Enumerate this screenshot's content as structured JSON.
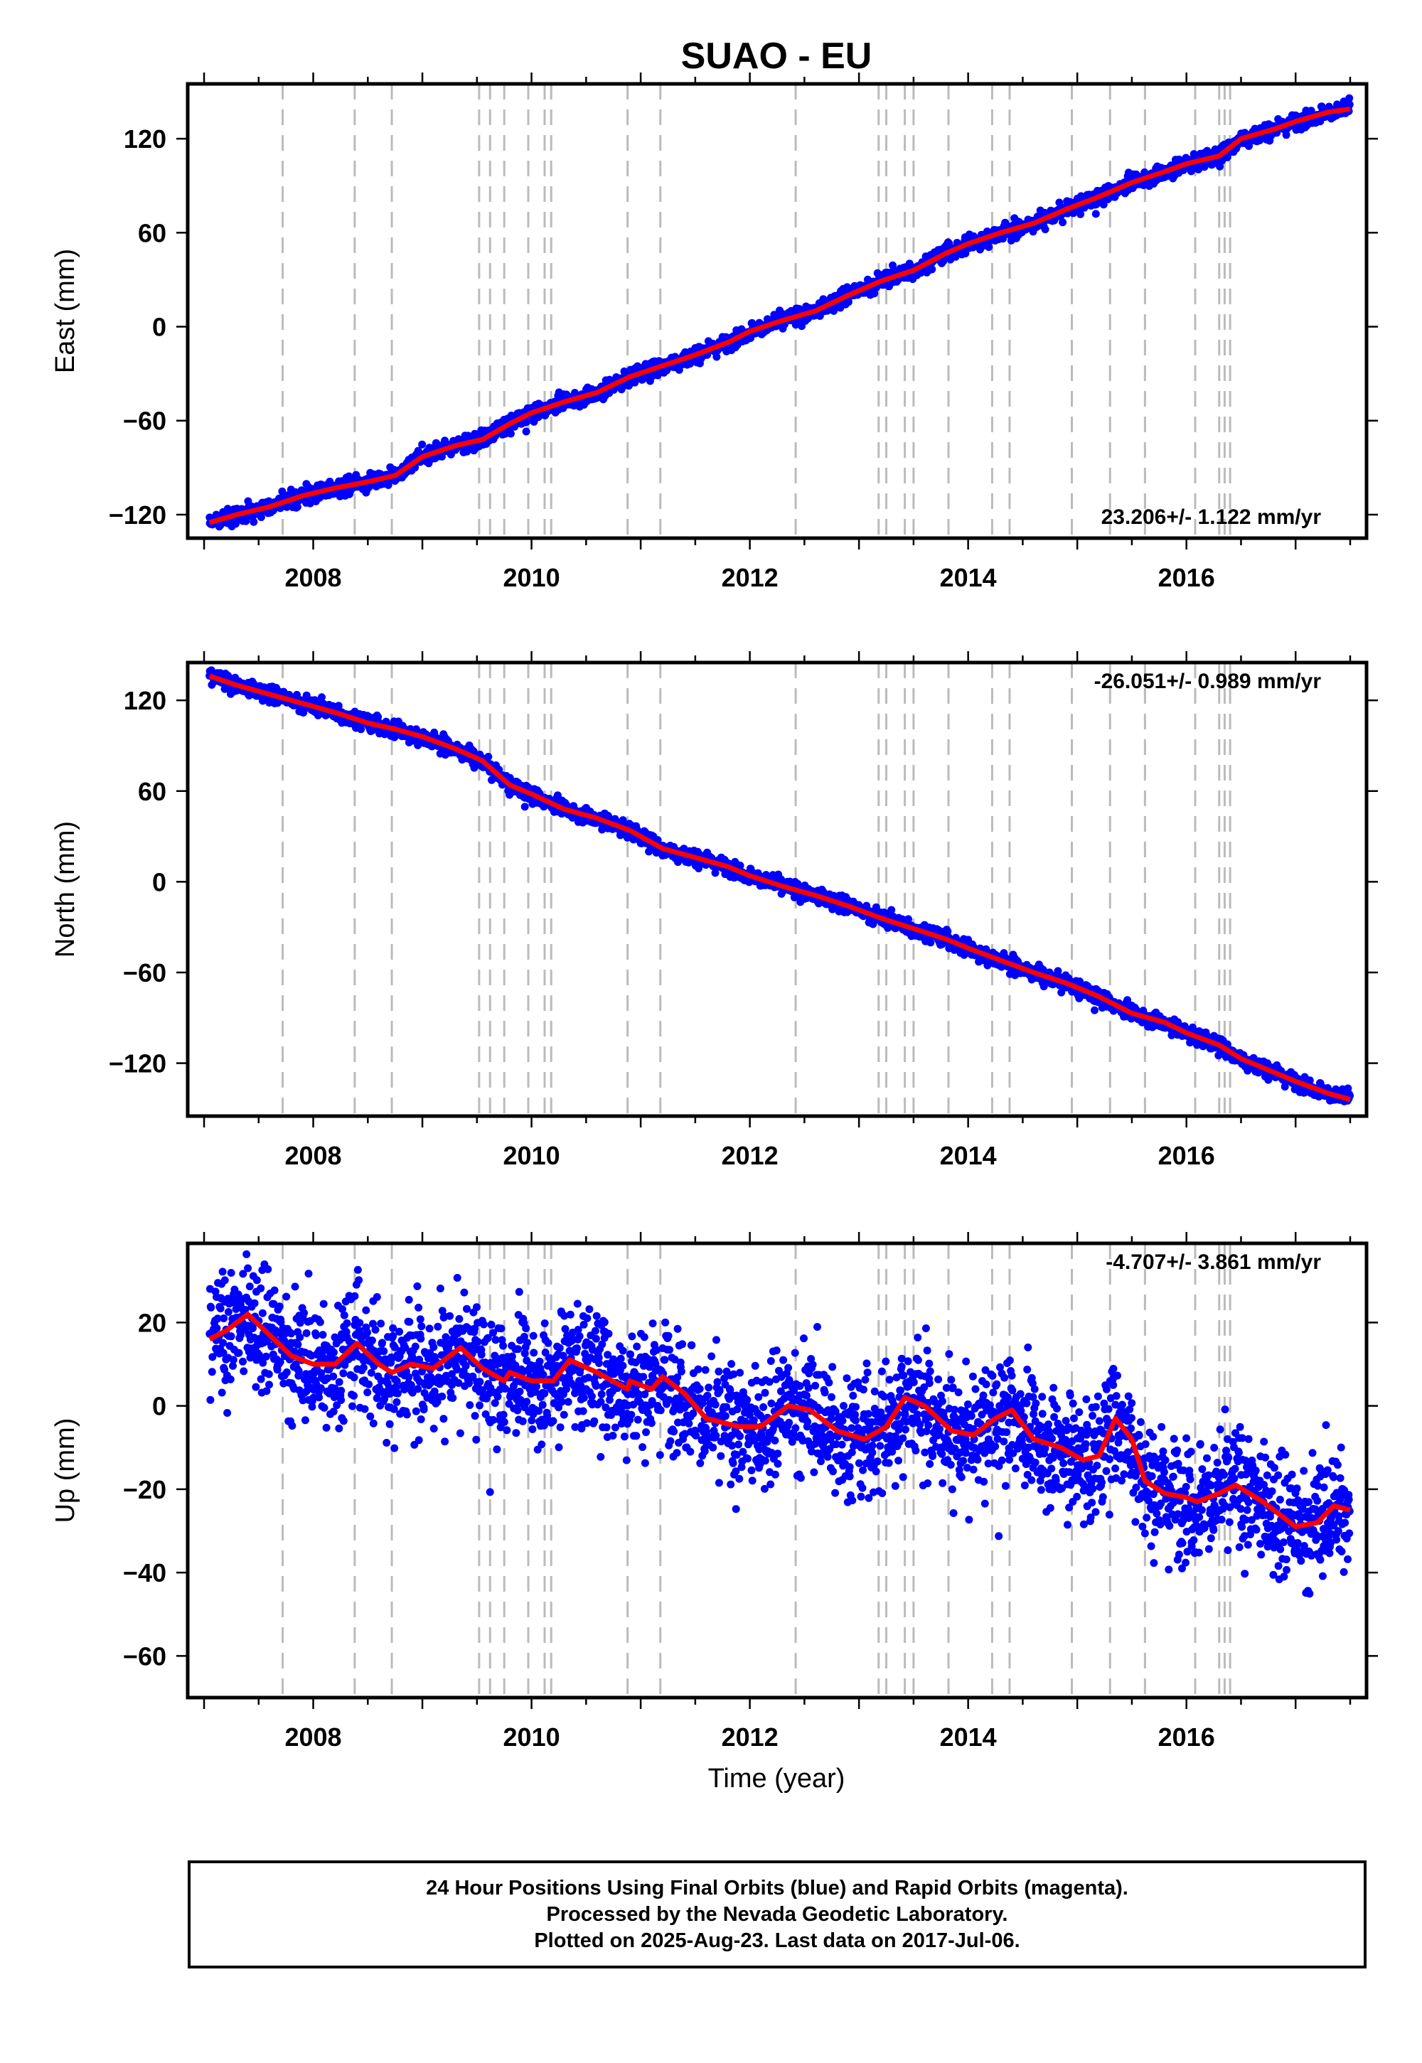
{
  "figure": {
    "title": "SUAO - EU",
    "xlabel": "Time (year)",
    "colors": {
      "final_orbits": "#0000ff",
      "model": "#ff0000",
      "events": "#bbbbbb",
      "frame": "#000000"
    },
    "caption": [
      "24 Hour Positions Using Final Orbits (blue) and Rapid Orbits (magenta).",
      "Processed by the Nevada Geodetic Laboratory.",
      "Plotted on 2025-Aug-23. Last data on 2017-Jul-06."
    ]
  },
  "chart_data": [
    {
      "type": "scatter",
      "component": "East",
      "ylabel": "East (mm)",
      "rate_label": "23.206+/- 1.122 mm/yr",
      "xlim": [
        2006.85,
        2017.65
      ],
      "ylim": [
        -135,
        155
      ],
      "yticks": [
        -120,
        -60,
        0,
        60,
        120
      ],
      "xticks": [
        2008,
        2010,
        2012,
        2014,
        2016
      ],
      "events": [
        2007.72,
        2008.38,
        2008.72,
        2009.52,
        2009.62,
        2009.75,
        2009.97,
        2010.12,
        2010.18,
        2010.88,
        2011.18,
        2012.42,
        2013.18,
        2013.25,
        2013.42,
        2013.5,
        2013.82,
        2014.22,
        2014.38,
        2014.95,
        2015.3,
        2015.62,
        2016.08,
        2016.3,
        2016.35,
        2016.4
      ],
      "series": [
        {
          "name": "",
          "style": "model-line",
          "x": [
            2007.05,
            2007.3,
            2007.6,
            2007.9,
            2008.2,
            2008.5,
            2008.75,
            2009.0,
            2009.3,
            2009.55,
            2009.8,
            2010.0,
            2010.3,
            2010.6,
            2010.9,
            2011.2,
            2011.5,
            2011.8,
            2012.0,
            2012.3,
            2012.6,
            2012.9,
            2013.2,
            2013.5,
            2013.8,
            2014.0,
            2014.3,
            2014.6,
            2014.9,
            2015.2,
            2015.5,
            2015.8,
            2016.0,
            2016.3,
            2016.5,
            2016.8,
            2017.0,
            2017.3,
            2017.5
          ],
          "y": [
            -125,
            -120,
            -115,
            -108,
            -103,
            -99,
            -95,
            -83,
            -76,
            -72,
            -62,
            -55,
            -48,
            -42,
            -32,
            -25,
            -18,
            -10,
            -3,
            4,
            10,
            20,
            29,
            36,
            47,
            53,
            60,
            66,
            75,
            83,
            92,
            99,
            104,
            109,
            120,
            126,
            131,
            137,
            139
          ]
        }
      ],
      "scatter_noise_mm": 2.5,
      "scatter_per_year": 250
    },
    {
      "type": "scatter",
      "component": "North",
      "ylabel": "North (mm)",
      "rate_label": "-26.051+/- 0.989 mm/yr",
      "xlim": [
        2006.85,
        2017.65
      ],
      "ylim": [
        -155,
        145
      ],
      "yticks": [
        -120,
        -60,
        0,
        60,
        120
      ],
      "xticks": [
        2008,
        2010,
        2012,
        2014,
        2016
      ],
      "events": [
        2007.72,
        2008.38,
        2008.72,
        2009.52,
        2009.62,
        2009.75,
        2009.97,
        2010.12,
        2010.18,
        2010.88,
        2011.18,
        2012.42,
        2013.18,
        2013.25,
        2013.42,
        2013.5,
        2013.82,
        2014.22,
        2014.38,
        2014.95,
        2015.3,
        2015.62,
        2016.08,
        2016.3,
        2016.35,
        2016.4
      ],
      "series": [
        {
          "name": "",
          "style": "model-line",
          "x": [
            2007.05,
            2007.3,
            2007.6,
            2007.9,
            2008.2,
            2008.5,
            2008.75,
            2009.0,
            2009.3,
            2009.55,
            2009.8,
            2010.0,
            2010.3,
            2010.6,
            2010.9,
            2011.2,
            2011.5,
            2011.8,
            2012.0,
            2012.3,
            2012.6,
            2012.9,
            2013.2,
            2013.5,
            2013.8,
            2014.0,
            2014.3,
            2014.6,
            2014.9,
            2015.2,
            2015.5,
            2015.8,
            2016.0,
            2016.3,
            2016.5,
            2016.8,
            2017.0,
            2017.3,
            2017.5
          ],
          "y": [
            136,
            130,
            124,
            118,
            112,
            105,
            101,
            96,
            88,
            80,
            64,
            58,
            48,
            42,
            34,
            22,
            16,
            10,
            4,
            -3,
            -9,
            -16,
            -24,
            -31,
            -38,
            -44,
            -52,
            -60,
            -67,
            -76,
            -87,
            -93,
            -100,
            -108,
            -117,
            -126,
            -132,
            -140,
            -144
          ]
        }
      ],
      "scatter_noise_mm": 2.5,
      "scatter_per_year": 250
    },
    {
      "type": "scatter",
      "component": "Up",
      "ylabel": "Up (mm)",
      "rate_label": "-4.707+/- 3.861 mm/yr",
      "xlim": [
        2006.85,
        2017.65
      ],
      "ylim": [
        -70,
        39
      ],
      "yticks": [
        -60,
        -40,
        -20,
        0,
        20
      ],
      "xticks": [
        2008,
        2010,
        2012,
        2014,
        2016
      ],
      "events": [
        2007.72,
        2008.38,
        2008.72,
        2009.52,
        2009.62,
        2009.75,
        2009.97,
        2010.12,
        2010.18,
        2010.88,
        2011.18,
        2012.42,
        2013.18,
        2013.25,
        2013.42,
        2013.5,
        2013.82,
        2014.22,
        2014.38,
        2014.95,
        2015.3,
        2015.62,
        2016.08,
        2016.3,
        2016.35,
        2016.4
      ],
      "series": [
        {
          "name": "",
          "style": "model-line",
          "x": [
            2007.05,
            2007.2,
            2007.4,
            2007.6,
            2007.8,
            2008.0,
            2008.2,
            2008.4,
            2008.6,
            2008.72,
            2008.9,
            2009.1,
            2009.35,
            2009.55,
            2009.75,
            2009.8,
            2010.0,
            2010.2,
            2010.35,
            2010.6,
            2010.88,
            2010.9,
            2011.1,
            2011.2,
            2011.4,
            2011.6,
            2011.9,
            2012.1,
            2012.35,
            2012.55,
            2012.8,
            2013.05,
            2013.25,
            2013.42,
            2013.6,
            2013.85,
            2014.05,
            2014.25,
            2014.4,
            2014.6,
            2014.85,
            2015.05,
            2015.2,
            2015.35,
            2015.5,
            2015.62,
            2015.8,
            2016.0,
            2016.1,
            2016.3,
            2016.45,
            2016.7,
            2017.0,
            2017.2,
            2017.35,
            2017.5
          ],
          "y": [
            16,
            18,
            22,
            17,
            12,
            10,
            10,
            15,
            10,
            8,
            10,
            9,
            14,
            9,
            6,
            8,
            6,
            6,
            11,
            8,
            4,
            6,
            4,
            7,
            3,
            -3,
            -5,
            -5,
            0,
            -1,
            -6,
            -8,
            -5,
            2,
            0,
            -6,
            -7,
            -3,
            -1,
            -8,
            -10,
            -13,
            -12,
            -3,
            -8,
            -18,
            -21,
            -22,
            -23,
            -21,
            -19,
            -23,
            -29,
            -28,
            -24,
            -25
          ]
        }
      ],
      "scatter_noise_mm": 7,
      "scatter_per_year": 280
    }
  ]
}
